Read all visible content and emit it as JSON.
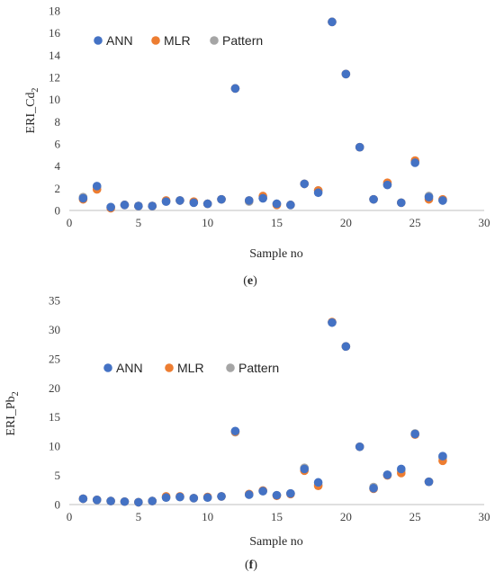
{
  "colors": {
    "ANN": "#4472C4",
    "MLR": "#ED7D31",
    "Pattern": "#A5A5A5"
  },
  "chart_data": [
    {
      "type": "scatter",
      "panel_label": "(e)",
      "panel_label_parts": [
        "(",
        "e",
        ")"
      ],
      "xlabel": "Sample no",
      "ylabel": "ERI_Cd",
      "ylabel_sub": "2",
      "xlim": [
        0,
        30
      ],
      "ylim": [
        0,
        18
      ],
      "x_ticks": [
        0,
        5,
        10,
        15,
        20,
        25,
        30
      ],
      "y_ticks": [
        0,
        2,
        4,
        6,
        8,
        10,
        12,
        14,
        16,
        18
      ],
      "grid": false,
      "legend_position": "top-left",
      "x": [
        1,
        2,
        3,
        4,
        5,
        6,
        7,
        8,
        9,
        10,
        11,
        12,
        13,
        14,
        15,
        16,
        17,
        18,
        19,
        20,
        21,
        22,
        23,
        24,
        25,
        26,
        27
      ],
      "series": [
        {
          "name": "ANN",
          "values": [
            1.1,
            2.2,
            0.3,
            0.5,
            0.4,
            0.4,
            0.8,
            0.9,
            0.7,
            0.6,
            1.0,
            11.0,
            0.9,
            1.1,
            0.6,
            0.5,
            2.4,
            1.6,
            17.0,
            12.3,
            5.7,
            1.0,
            2.3,
            0.7,
            4.3,
            1.2,
            0.9
          ]
        },
        {
          "name": "MLR",
          "values": [
            1.0,
            1.9,
            0.2,
            0.5,
            0.4,
            0.4,
            0.9,
            0.9,
            0.8,
            0.6,
            1.0,
            11.0,
            0.9,
            1.3,
            0.5,
            0.5,
            2.4,
            1.8,
            17.0,
            12.3,
            5.7,
            1.0,
            2.5,
            0.7,
            4.5,
            1.0,
            1.0
          ]
        },
        {
          "name": "Pattern",
          "values": [
            1.2,
            2.1,
            0.3,
            0.5,
            0.4,
            0.4,
            0.8,
            0.9,
            0.7,
            0.6,
            1.0,
            11.0,
            0.8,
            1.1,
            0.6,
            0.5,
            2.4,
            1.8,
            17.0,
            12.3,
            5.7,
            1.0,
            2.3,
            0.7,
            4.4,
            1.3,
            0.9
          ]
        }
      ]
    },
    {
      "type": "scatter",
      "panel_label": "(f)",
      "panel_label_parts": [
        "(",
        "f",
        ")"
      ],
      "xlabel": "Sample no",
      "ylabel": "ERI_Pb",
      "ylabel_sub": "2",
      "xlim": [
        0,
        30
      ],
      "ylim": [
        0,
        35
      ],
      "x_ticks": [
        0,
        5,
        10,
        15,
        20,
        25,
        30
      ],
      "y_ticks": [
        0,
        5,
        10,
        15,
        20,
        25,
        30,
        35
      ],
      "grid": false,
      "legend_position": "middle-left",
      "x": [
        1,
        2,
        3,
        4,
        5,
        6,
        7,
        8,
        9,
        10,
        11,
        12,
        13,
        14,
        15,
        16,
        17,
        18,
        19,
        20,
        21,
        22,
        23,
        24,
        25,
        26,
        27
      ],
      "series": [
        {
          "name": "ANN",
          "values": [
            1.0,
            0.8,
            0.6,
            0.5,
            0.4,
            0.6,
            1.2,
            1.3,
            1.1,
            1.2,
            1.4,
            12.6,
            1.7,
            2.3,
            1.6,
            1.9,
            6.1,
            3.8,
            31.2,
            27.1,
            9.9,
            2.8,
            5.1,
            6.1,
            12.1,
            3.9,
            8.3
          ]
        },
        {
          "name": "MLR",
          "values": [
            1.0,
            0.8,
            0.6,
            0.5,
            0.4,
            0.6,
            1.4,
            1.4,
            1.1,
            1.3,
            1.4,
            12.5,
            1.8,
            2.4,
            1.5,
            1.8,
            5.8,
            3.2,
            31.3,
            27.1,
            9.9,
            2.7,
            5.0,
            5.4,
            12.0,
            3.9,
            7.5
          ]
        },
        {
          "name": "Pattern",
          "values": [
            1.0,
            0.8,
            0.6,
            0.5,
            0.4,
            0.6,
            1.2,
            1.3,
            1.1,
            1.2,
            1.4,
            12.4,
            1.7,
            2.3,
            1.6,
            1.9,
            6.3,
            3.4,
            31.2,
            27.1,
            9.9,
            3.0,
            5.1,
            5.8,
            12.2,
            3.9,
            8.0
          ]
        }
      ]
    }
  ]
}
